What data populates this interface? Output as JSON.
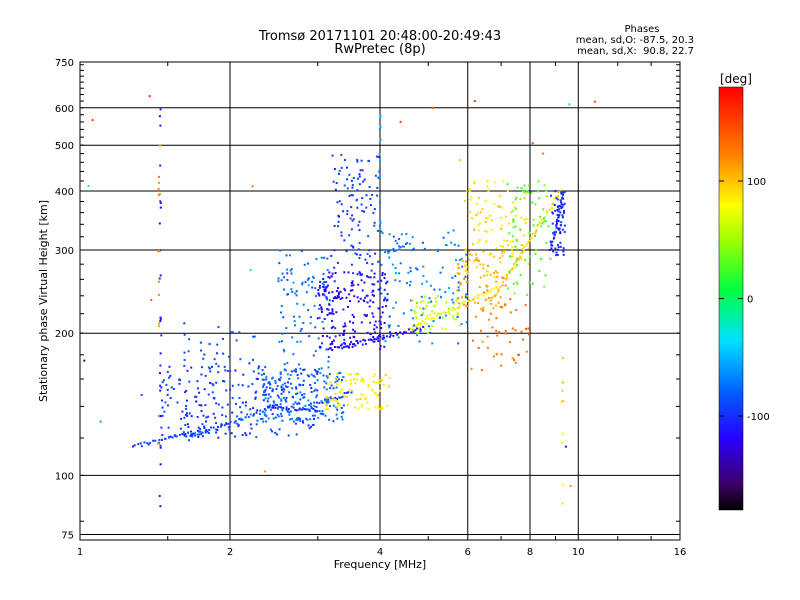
{
  "chart_data": {
    "type": "scatter",
    "title": "Tromsø 20171101 20:48:00-20:49:43",
    "subtitle": "RwPretec (8p)",
    "xlabel": "Frequency [MHz]",
    "ylabel": "Stationary phase Virtual Height [km]",
    "x_scale": "log",
    "y_scale": "log",
    "xlim": [
      1,
      16
    ],
    "ylim": [
      73,
      750
    ],
    "xticks": [
      1,
      2,
      4,
      6,
      8,
      10,
      16
    ],
    "yticks": [
      75,
      100,
      200,
      300,
      400,
      500,
      600,
      750
    ],
    "grid": true,
    "phase_box": {
      "heading": "Phases",
      "line_o": "mean, sd,O: -87.5, 20.3",
      "line_x": "mean, sd,X:  90.8, 22.7"
    },
    "colorbar": {
      "label": "[deg]",
      "range": [
        -180,
        180
      ],
      "ticks": [
        -100,
        0,
        100
      ],
      "colormap": "rainbow"
    },
    "traces": [
      {
        "x": [
          1.28,
          1.75
        ],
        "y": [
          115,
          125
        ],
        "phase": -95
      },
      {
        "x": [
          1.65,
          2.45
        ],
        "y": [
          120,
          140
        ],
        "phase": -85
      },
      {
        "x": [
          2.4,
          3.0
        ],
        "y": [
          140,
          137
        ],
        "phase": -110
      },
      {
        "x": [
          3.0,
          3.5
        ],
        "y": [
          142,
          150
        ],
        "phase": -100
      },
      {
        "x": [
          3.15,
          4.9
        ],
        "y": [
          185,
          205
        ],
        "phase": -120
      },
      {
        "x": [
          4.1,
          4.6
        ],
        "y": [
          295,
          310
        ],
        "phase": -70
      },
      {
        "x": [
          4.6,
          6.9
        ],
        "y": [
          205,
          250
        ],
        "phase": 80
      },
      {
        "x": [
          6.8,
          9.2
        ],
        "y": [
          240,
          400
        ],
        "phase": 95
      },
      {
        "x": [
          8.8,
          9.4
        ],
        "y": [
          300,
          400
        ],
        "phase": -105
      }
    ],
    "clusters": [
      {
        "x": [
          1.45,
          3.0
        ],
        "y": [
          120,
          170
        ],
        "phase": -95,
        "count": 260
      },
      {
        "x": [
          1.6,
          2.3
        ],
        "y": [
          165,
          210
        ],
        "phase": -90,
        "count": 35
      },
      {
        "x": [
          2.3,
          3.4
        ],
        "y": [
          130,
          165
        ],
        "phase": -75,
        "count": 160
      },
      {
        "x": [
          2.5,
          3.2
        ],
        "y": [
          165,
          300
        ],
        "phase": -75,
        "count": 110
      },
      {
        "x": [
          3.0,
          4.2
        ],
        "y": [
          185,
          270
        ],
        "phase": -115,
        "count": 210
      },
      {
        "x": [
          3.2,
          4.0
        ],
        "y": [
          270,
          480
        ],
        "phase": -95,
        "count": 110
      },
      {
        "x": [
          3.1,
          4.2
        ],
        "y": [
          138,
          165
        ],
        "phase": 85,
        "count": 90
      },
      {
        "x": [
          4.0,
          6.0
        ],
        "y": [
          190,
          330
        ],
        "phase": -70,
        "count": 110
      },
      {
        "x": [
          4.6,
          5.8
        ],
        "y": [
          200,
          240
        ],
        "phase": 60,
        "count": 55
      },
      {
        "x": [
          5.7,
          7.2
        ],
        "y": [
          225,
          300
        ],
        "phase": 110,
        "count": 75
      },
      {
        "x": [
          5.9,
          8.0
        ],
        "y": [
          260,
          420
        ],
        "phase": 90,
        "count": 110
      },
      {
        "x": [
          6.0,
          8.0
        ],
        "y": [
          165,
          240
        ],
        "phase": 130,
        "count": 45
      },
      {
        "x": [
          7.2,
          8.8
        ],
        "y": [
          240,
          420
        ],
        "phase": 30,
        "count": 70
      },
      {
        "x": [
          8.8,
          9.4
        ],
        "y": [
          290,
          400
        ],
        "phase": -100,
        "count": 60
      }
    ],
    "columns": [
      {
        "x": 1.45,
        "y": [
          80,
          610
        ],
        "phase": -110,
        "count": 28
      },
      {
        "x": 1.44,
        "y": [
          110,
          500
        ],
        "phase": 120,
        "count": 14
      },
      {
        "x": 9.3,
        "y": [
          85,
          190
        ],
        "phase": 90,
        "count": 10
      },
      {
        "x": 4.0,
        "y": [
          300,
          640
        ],
        "phase": -60,
        "count": 14
      }
    ],
    "outliers": [
      {
        "x": 1.04,
        "y": 410,
        "phase": 0
      },
      {
        "x": 1.06,
        "y": 565,
        "phase": 150
      },
      {
        "x": 1.02,
        "y": 175,
        "phase": -130
      },
      {
        "x": 1.1,
        "y": 130,
        "phase": -70
      },
      {
        "x": 1.38,
        "y": 635,
        "phase": 150
      },
      {
        "x": 1.39,
        "y": 235,
        "phase": 150
      },
      {
        "x": 2.22,
        "y": 409,
        "phase": 130
      },
      {
        "x": 2.35,
        "y": 102,
        "phase": 120
      },
      {
        "x": 2.2,
        "y": 272,
        "phase": -50
      },
      {
        "x": 5.1,
        "y": 600,
        "phase": 150
      },
      {
        "x": 6.2,
        "y": 620,
        "phase": 150
      },
      {
        "x": 8.5,
        "y": 480,
        "phase": 120
      },
      {
        "x": 9.6,
        "y": 610,
        "phase": -20
      },
      {
        "x": 10.8,
        "y": 618,
        "phase": 150
      },
      {
        "x": 9.65,
        "y": 95,
        "phase": 110
      },
      {
        "x": 9.45,
        "y": 115,
        "phase": -110
      },
      {
        "x": 5.8,
        "y": 465,
        "phase": 100
      },
      {
        "x": 8.1,
        "y": 505,
        "phase": 150
      },
      {
        "x": 4.4,
        "y": 560,
        "phase": 150
      },
      {
        "x": 1.33,
        "y": 148,
        "phase": -70
      }
    ]
  }
}
